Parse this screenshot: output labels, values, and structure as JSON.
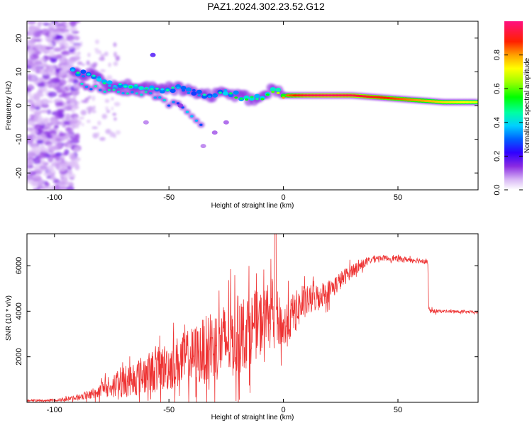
{
  "title": "PAZ1.2024.302.23.52.G12",
  "chart_data": [
    {
      "type": "heatmap",
      "xlabel": "Height of straight line (km)",
      "ylabel": "Frequency (Hz)",
      "xlim": [
        -112,
        85
      ],
      "ylim": [
        -25,
        25
      ],
      "xticks": [
        -100,
        -50,
        0,
        50
      ],
      "xtick_labels": [
        "-100",
        "-50",
        "0",
        "50"
      ],
      "yticks": [
        -20,
        -10,
        0,
        10,
        20
      ],
      "ytick_labels": [
        "-20",
        "-10",
        "0",
        "10",
        "20"
      ],
      "colorbar": {
        "label": "Normalized spectral amplitude",
        "range": [
          0,
          1
        ],
        "ticks": [
          0,
          0.2,
          0.4,
          0.6,
          0.8
        ],
        "tick_labels": [
          "0.0",
          "0.2",
          "0.4",
          "0.6",
          "0.8"
        ],
        "colormap": "hsv-rainbow"
      },
      "ridge": {
        "x": [
          -92,
          -85,
          -80,
          -75,
          -70,
          -65,
          -60,
          -55,
          -50,
          -45,
          -40,
          -35,
          -30,
          -25,
          -20,
          -15,
          -10,
          -5,
          0,
          10,
          20,
          30,
          40,
          50,
          60,
          70,
          85
        ],
        "freq": [
          10,
          9,
          8,
          6,
          6,
          6,
          5,
          5,
          5,
          5,
          4,
          3,
          3,
          4,
          3,
          2,
          2,
          5,
          3,
          3,
          3,
          3,
          2.5,
          2,
          1.5,
          1,
          1
        ],
        "amplitude": [
          0.45,
          0.4,
          0.45,
          0.4,
          0.45,
          0.5,
          0.45,
          0.4,
          0.45,
          0.4,
          0.35,
          0.4,
          0.4,
          0.45,
          0.5,
          0.55,
          0.6,
          0.65,
          0.8,
          0.95,
          0.98,
          0.95,
          0.9,
          0.85,
          0.8,
          0.75,
          0.7
        ]
      },
      "secondary": {
        "x": [
          -88,
          -80,
          -72,
          -65,
          -58,
          -52,
          -45,
          -40,
          -36
        ],
        "freq": [
          6,
          5,
          4,
          4,
          3,
          1,
          0,
          -3,
          -6
        ],
        "amplitude": [
          0.35,
          0.4,
          0.4,
          0.35,
          0.4,
          0.35,
          0.3,
          0.35,
          0.35
        ]
      }
    },
    {
      "type": "line",
      "xlabel": "Height of straight line (km)",
      "ylabel": "SNR (10 * v/v)",
      "xlim": [
        -112,
        85
      ],
      "ylim": [
        0,
        7400
      ],
      "xticks": [
        -100,
        -50,
        0,
        50
      ],
      "xtick_labels": [
        "-100",
        "-50",
        "0",
        "50"
      ],
      "yticks": [
        2000,
        4000,
        6000
      ],
      "ytick_labels": [
        "2000",
        "4000",
        "6000"
      ],
      "color": "#ee3333",
      "trend": {
        "x": [
          -112,
          -100,
          -90,
          -80,
          -70,
          -60,
          -50,
          -40,
          -30,
          -20,
          -10,
          -5,
          0,
          5,
          10,
          20,
          30,
          40,
          50,
          63,
          63.5,
          70,
          85
        ],
        "y": [
          80,
          90,
          200,
          500,
          900,
          1250,
          1600,
          2000,
          2500,
          2900,
          3500,
          4200,
          3200,
          4000,
          4400,
          4900,
          5800,
          6350,
          6300,
          6200,
          4000,
          4000,
          3950
        ]
      },
      "noise": {
        "x": [
          -112,
          -100,
          -90,
          -80,
          -70,
          -60,
          -50,
          -40,
          -30,
          -20,
          -10,
          0,
          10,
          30,
          40,
          63,
          70,
          85
        ],
        "amplitude": [
          40,
          50,
          120,
          300,
          700,
          900,
          1100,
          1300,
          1600,
          1800,
          1400,
          1100,
          700,
          300,
          120,
          120,
          60,
          60
        ]
      },
      "peak": {
        "x": -3.5,
        "y": 7400
      }
    }
  ]
}
